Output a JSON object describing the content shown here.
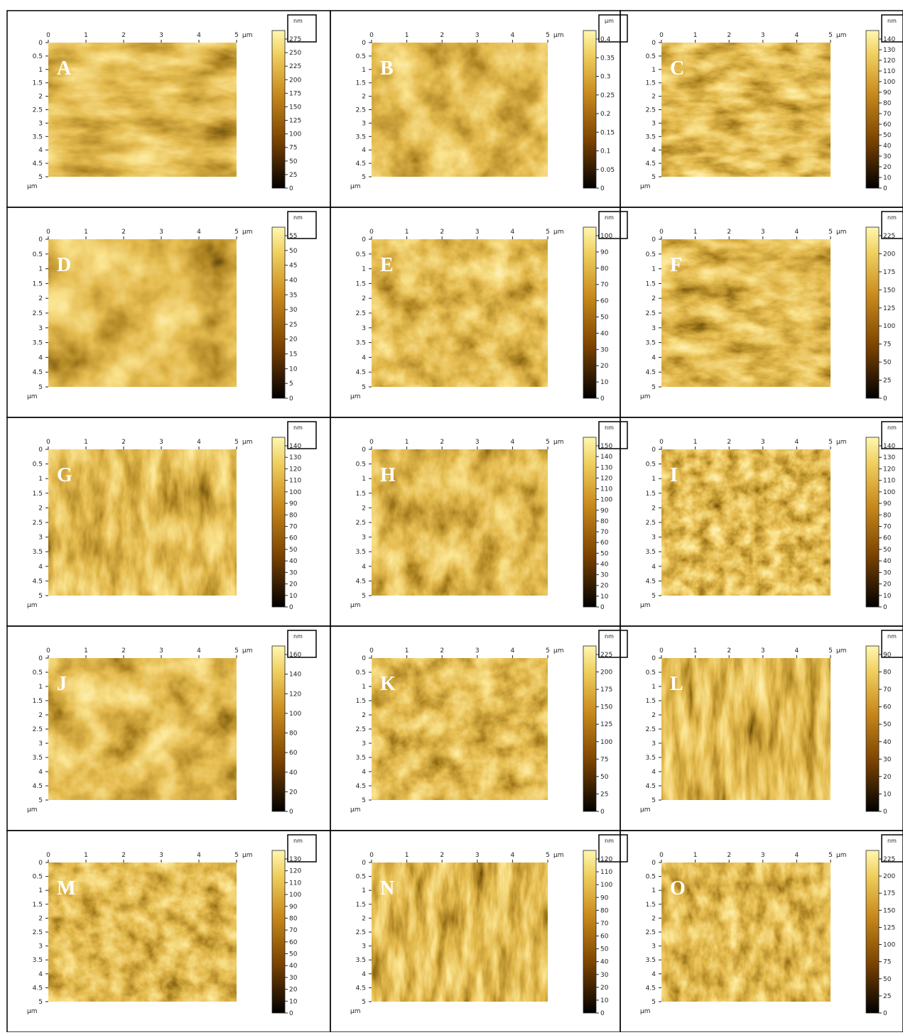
{
  "axis": {
    "x_ticks": [
      0,
      1,
      2,
      3,
      4,
      5
    ],
    "y_ticks": [
      0,
      0.5,
      1,
      1.5,
      2,
      2.5,
      3,
      3.5,
      4,
      4.5,
      5
    ],
    "unit": "µm"
  },
  "panels": [
    {
      "label": "A",
      "scale_unit": "nm",
      "scale_ticks": [
        0,
        25,
        50,
        75,
        100,
        125,
        150,
        175,
        200,
        225,
        250,
        275
      ]
    },
    {
      "label": "B",
      "scale_unit": "µm",
      "scale_ticks": [
        0,
        0.05,
        0.1,
        0.15,
        0.2,
        0.25,
        0.3,
        0.35,
        0.4
      ]
    },
    {
      "label": "C",
      "scale_unit": "nm",
      "scale_ticks": [
        0,
        10,
        20,
        30,
        40,
        50,
        60,
        70,
        80,
        90,
        100,
        110,
        120,
        130,
        140
      ]
    },
    {
      "label": "D",
      "scale_unit": "nm",
      "scale_ticks": [
        0,
        5,
        10,
        15,
        20,
        25,
        30,
        35,
        40,
        45,
        50,
        55
      ]
    },
    {
      "label": "E",
      "scale_unit": "nm",
      "scale_ticks": [
        0,
        10,
        20,
        30,
        40,
        50,
        60,
        70,
        80,
        90,
        100
      ]
    },
    {
      "label": "F",
      "scale_unit": "nm",
      "scale_ticks": [
        0,
        25,
        50,
        75,
        100,
        125,
        150,
        175,
        200,
        225
      ]
    },
    {
      "label": "G",
      "scale_unit": "nm",
      "scale_ticks": [
        0,
        10,
        20,
        30,
        40,
        50,
        60,
        70,
        80,
        90,
        100,
        110,
        120,
        130,
        140
      ]
    },
    {
      "label": "H",
      "scale_unit": "nm",
      "scale_ticks": [
        0,
        10,
        20,
        30,
        40,
        50,
        60,
        70,
        80,
        90,
        100,
        110,
        120,
        130,
        140,
        150
      ]
    },
    {
      "label": "I",
      "scale_unit": "nm",
      "scale_ticks": [
        0,
        10,
        20,
        30,
        40,
        50,
        60,
        70,
        80,
        90,
        100,
        110,
        120,
        130,
        140
      ]
    },
    {
      "label": "J",
      "scale_unit": "nm",
      "scale_ticks": [
        0,
        20,
        40,
        60,
        80,
        100,
        120,
        140,
        160
      ]
    },
    {
      "label": "K",
      "scale_unit": "nm",
      "scale_ticks": [
        0,
        25,
        50,
        75,
        100,
        125,
        150,
        175,
        200,
        225
      ]
    },
    {
      "label": "L",
      "scale_unit": "nm",
      "scale_ticks": [
        0,
        10,
        20,
        30,
        40,
        50,
        60,
        70,
        80,
        90
      ]
    },
    {
      "label": "M",
      "scale_unit": "nm",
      "scale_ticks": [
        0,
        10,
        20,
        30,
        40,
        50,
        60,
        70,
        80,
        90,
        100,
        110,
        120,
        130
      ]
    },
    {
      "label": "N",
      "scale_unit": "nm",
      "scale_ticks": [
        0,
        10,
        20,
        30,
        40,
        50,
        60,
        70,
        80,
        90,
        100,
        110,
        120
      ]
    },
    {
      "label": "O",
      "scale_unit": "nm",
      "scale_ticks": [
        0,
        25,
        50,
        75,
        100,
        125,
        150,
        175,
        200,
        225
      ]
    }
  ]
}
